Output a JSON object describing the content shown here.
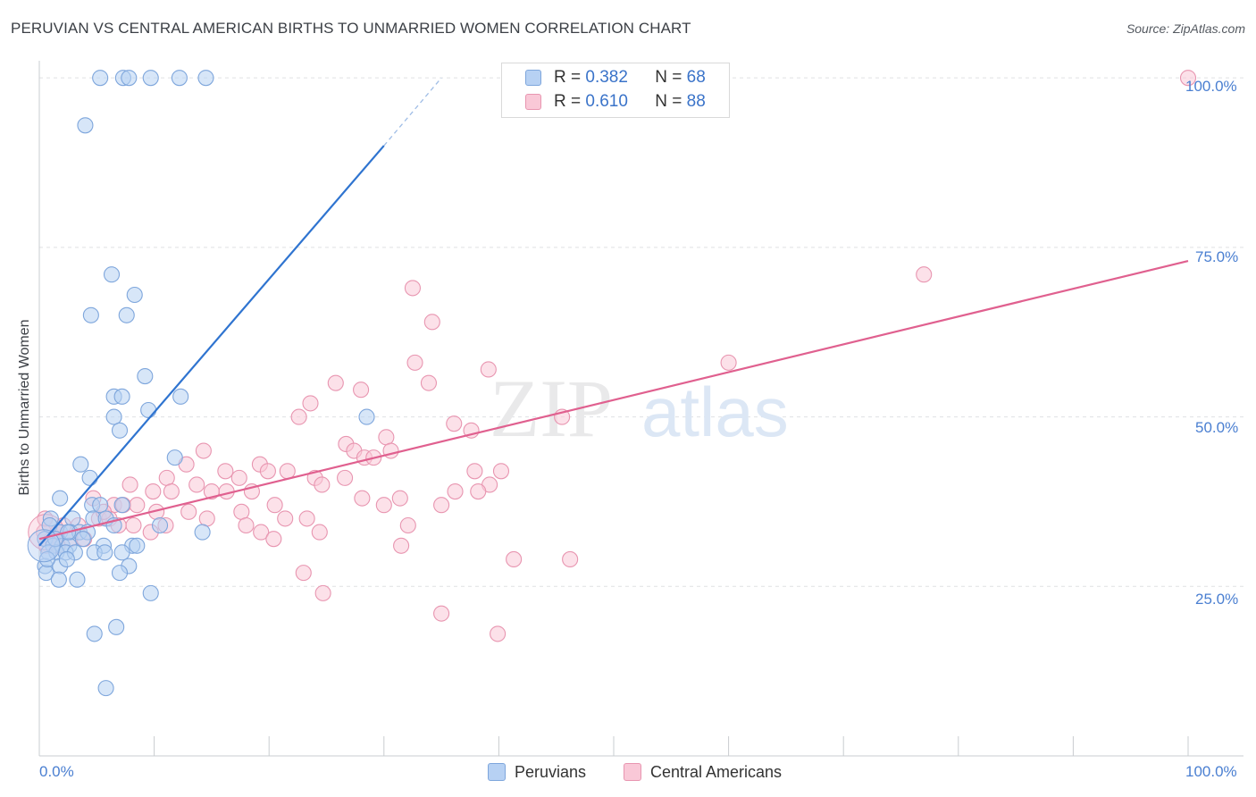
{
  "title": "PERUVIAN VS CENTRAL AMERICAN BIRTHS TO UNMARRIED WOMEN CORRELATION CHART",
  "source": "Source: ZipAtlas.com",
  "watermark": {
    "zip": "ZIP",
    "atlas": "atlas"
  },
  "legend": {
    "series1": {
      "r_label": "R =",
      "r_value": "0.382",
      "n_label": "N =",
      "n_value": "68"
    },
    "series2": {
      "r_label": "R =",
      "r_value": "0.610",
      "n_label": "N =",
      "n_value": "88"
    }
  },
  "bottom_legend": {
    "series1": "Peruvians",
    "series2": "Central Americans"
  },
  "colors": {
    "blue": "#2f74d0",
    "pink": "#e0608f",
    "blue_fill": "#b7d1f3",
    "pink_fill": "#f9c8d7",
    "tick_text": "#4a7fd1"
  },
  "chart_data": {
    "type": "scatter",
    "title": "PERUVIAN VS CENTRAL AMERICAN BIRTHS TO UNMARRIED WOMEN CORRELATION CHART",
    "xlabel": "",
    "ylabel": "Births to Unmarried Women",
    "xlim": [
      0,
      100
    ],
    "ylim": [
      0,
      102
    ],
    "x_tick_labels": [
      "0.0%",
      "100.0%"
    ],
    "y_ticks": [
      25,
      50,
      75,
      100
    ],
    "y_tick_labels": [
      "25.0%",
      "50.0%",
      "75.0%",
      "100.0%"
    ],
    "grid": true,
    "legend_position": "top-center",
    "series": [
      {
        "name": "Peruvians",
        "color": "#2f74d0",
        "R": 0.382,
        "N": 68,
        "trend": {
          "x0": 0,
          "y0": 31,
          "x1": 30,
          "y1": 90,
          "dashed_to_x": 35,
          "dashed_to_y": 100
        },
        "points": [
          [
            5.3,
            100
          ],
          [
            7.3,
            100
          ],
          [
            7.8,
            100
          ],
          [
            9.7,
            100
          ],
          [
            12.2,
            100
          ],
          [
            14.5,
            100
          ],
          [
            4,
            93
          ],
          [
            6.3,
            71
          ],
          [
            8.3,
            68
          ],
          [
            4.5,
            65
          ],
          [
            7.6,
            65
          ],
          [
            9.2,
            56
          ],
          [
            9.5,
            51
          ],
          [
            12.3,
            53
          ],
          [
            6.5,
            53
          ],
          [
            7.2,
            53
          ],
          [
            6.5,
            50
          ],
          [
            7,
            48
          ],
          [
            28.5,
            50
          ],
          [
            11.8,
            44
          ],
          [
            3.6,
            43
          ],
          [
            4.4,
            41
          ],
          [
            1.8,
            38
          ],
          [
            4.6,
            37
          ],
          [
            5.3,
            37
          ],
          [
            7.2,
            37
          ],
          [
            1,
            35
          ],
          [
            2.9,
            35
          ],
          [
            4.7,
            35
          ],
          [
            5.8,
            35
          ],
          [
            6.5,
            34
          ],
          [
            10.5,
            34
          ],
          [
            14.2,
            33
          ],
          [
            0.9,
            34
          ],
          [
            1.8,
            33
          ],
          [
            2.7,
            33
          ],
          [
            3.5,
            33
          ],
          [
            4.2,
            33
          ],
          [
            0.5,
            32
          ],
          [
            1.2,
            31
          ],
          [
            2,
            31
          ],
          [
            2.6,
            31
          ],
          [
            5.6,
            31
          ],
          [
            8.1,
            31
          ],
          [
            0.8,
            30
          ],
          [
            1.5,
            30
          ],
          [
            2.3,
            30
          ],
          [
            3.1,
            30
          ],
          [
            4.8,
            30
          ],
          [
            5.7,
            30
          ],
          [
            7.2,
            30
          ],
          [
            8.5,
            31
          ],
          [
            0.5,
            28
          ],
          [
            1.8,
            28
          ],
          [
            2.4,
            29
          ],
          [
            7.8,
            28
          ],
          [
            0.6,
            27
          ],
          [
            1.7,
            26
          ],
          [
            3.3,
            26
          ],
          [
            7,
            27
          ],
          [
            9.7,
            24
          ],
          [
            6.7,
            19
          ],
          [
            4.8,
            18
          ],
          [
            5.8,
            10
          ],
          [
            2.5,
            33
          ],
          [
            1.4,
            32
          ],
          [
            3.8,
            32
          ],
          [
            0.7,
            29
          ]
        ]
      },
      {
        "name": "Central Americans",
        "color": "#e0608f",
        "R": 0.61,
        "N": 88,
        "trend": {
          "x0": 0,
          "y0": 32,
          "x1": 100,
          "y1": 73
        },
        "points": [
          [
            100,
            100
          ],
          [
            77,
            71
          ],
          [
            32.5,
            69
          ],
          [
            34.2,
            64
          ],
          [
            60,
            58
          ],
          [
            32.7,
            58
          ],
          [
            33.9,
            55
          ],
          [
            39.1,
            57
          ],
          [
            25.8,
            55
          ],
          [
            28,
            54
          ],
          [
            23.6,
            52
          ],
          [
            22.6,
            50
          ],
          [
            45.5,
            50
          ],
          [
            36.1,
            49
          ],
          [
            37.6,
            48
          ],
          [
            30.2,
            47
          ],
          [
            26.7,
            46
          ],
          [
            27.4,
            45
          ],
          [
            30.6,
            45
          ],
          [
            28.3,
            44
          ],
          [
            29.1,
            44
          ],
          [
            14.3,
            45
          ],
          [
            12.8,
            43
          ],
          [
            16.2,
            42
          ],
          [
            19.2,
            43
          ],
          [
            19.9,
            42
          ],
          [
            21.6,
            42
          ],
          [
            37.9,
            42
          ],
          [
            40.2,
            42
          ],
          [
            24,
            41
          ],
          [
            26.6,
            41
          ],
          [
            11.1,
            41
          ],
          [
            17.4,
            41
          ],
          [
            7.9,
            40
          ],
          [
            13.7,
            40
          ],
          [
            15,
            39
          ],
          [
            16.3,
            39
          ],
          [
            24.6,
            40
          ],
          [
            9.9,
            39
          ],
          [
            11.5,
            39
          ],
          [
            18.5,
            39
          ],
          [
            39.2,
            40
          ],
          [
            38.2,
            39
          ],
          [
            36.2,
            39
          ],
          [
            28.1,
            38
          ],
          [
            31.4,
            38
          ],
          [
            4.7,
            38
          ],
          [
            6.5,
            37
          ],
          [
            7.3,
            37
          ],
          [
            8.5,
            37
          ],
          [
            10.2,
            36
          ],
          [
            13,
            36
          ],
          [
            17.6,
            36
          ],
          [
            20.5,
            37
          ],
          [
            30,
            37
          ],
          [
            35,
            37
          ],
          [
            5.2,
            35
          ],
          [
            6.1,
            35
          ],
          [
            8.2,
            34
          ],
          [
            14.6,
            35
          ],
          [
            21.4,
            35
          ],
          [
            23.3,
            35
          ],
          [
            2.1,
            34
          ],
          [
            3.4,
            34
          ],
          [
            6.9,
            34
          ],
          [
            11,
            34
          ],
          [
            18,
            34
          ],
          [
            19.3,
            33
          ],
          [
            24.4,
            33
          ],
          [
            32.1,
            34
          ],
          [
            0.4,
            33
          ],
          [
            1.6,
            33
          ],
          [
            2.7,
            32
          ],
          [
            3.9,
            32
          ],
          [
            9.7,
            33
          ],
          [
            20.4,
            32
          ],
          [
            0.6,
            31
          ],
          [
            1.6,
            31
          ],
          [
            31.5,
            31
          ],
          [
            23,
            27
          ],
          [
            41.3,
            29
          ],
          [
            46.2,
            29
          ],
          [
            24.7,
            24
          ],
          [
            35,
            21
          ],
          [
            39.9,
            18
          ],
          [
            0.5,
            35
          ],
          [
            1.1,
            32
          ],
          [
            5.6,
            36
          ]
        ]
      }
    ]
  }
}
